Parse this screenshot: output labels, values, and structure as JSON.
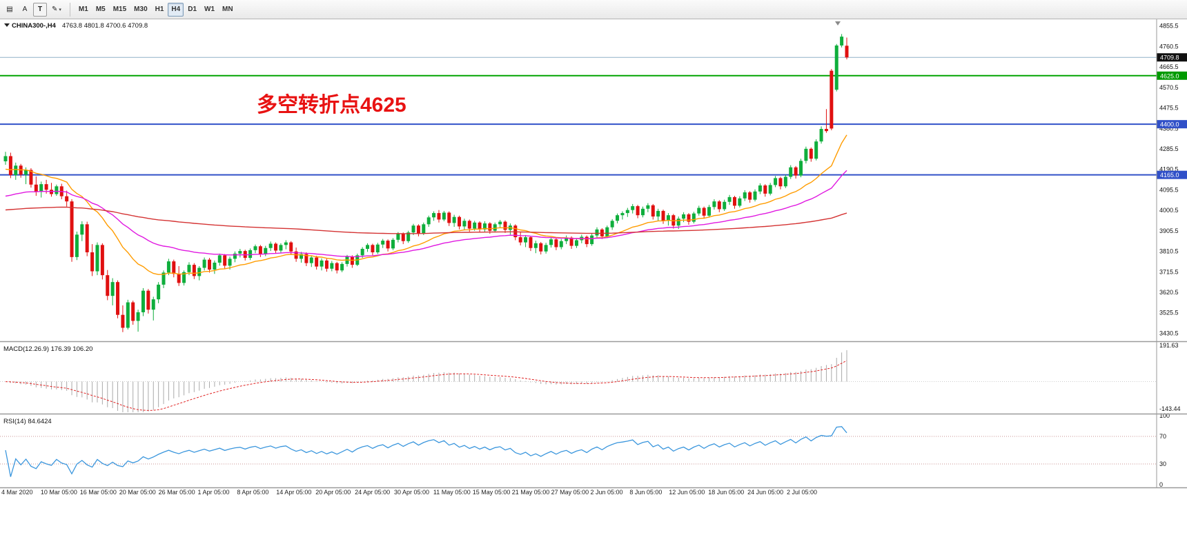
{
  "toolbar": {
    "tools": [
      {
        "label": "▤",
        "name": "chart-panels-icon",
        "boxed": false,
        "caret": false
      },
      {
        "label": "A",
        "name": "text-label-tool",
        "boxed": false,
        "caret": false
      },
      {
        "label": "T",
        "name": "text-box-tool",
        "boxed": true,
        "caret": false
      },
      {
        "label": "✎",
        "name": "drawing-tool",
        "boxed": false,
        "caret": true
      }
    ],
    "timeframes": [
      "M1",
      "M5",
      "M15",
      "M30",
      "H1",
      "H4",
      "D1",
      "W1",
      "MN"
    ],
    "active_timeframe": "H4"
  },
  "chart": {
    "symbol_label": "CHINA300-,H4",
    "ohlc_label": "4763.8 4801.8 4700.6 4709.8",
    "annotation": {
      "text": "多空转折点4625",
      "color": "#e81212"
    },
    "price_axis": {
      "min": 3400,
      "max": 4880,
      "ticks": [
        4855.5,
        4760.5,
        4665.5,
        4570.5,
        4475.5,
        4380.5,
        4285.5,
        4190.5,
        4095.5,
        4000.5,
        3905.5,
        3810.5,
        3715.5,
        3620.5,
        3525.5,
        3430.5
      ]
    },
    "badges": [
      {
        "value": "4709.8",
        "price": 4709.8,
        "bg": "#111111",
        "name": "current-price-badge"
      },
      {
        "value": "4625.0",
        "price": 4625.0,
        "bg": "#009a00",
        "name": "level-badge-4625"
      },
      {
        "value": "4400.0",
        "price": 4400.0,
        "bg": "#3050c8",
        "name": "level-badge-4400"
      },
      {
        "value": "4165.0",
        "price": 4165.0,
        "bg": "#3050c8",
        "name": "level-badge-4165"
      }
    ],
    "hlines": [
      {
        "price": 4709.8,
        "color": "#8fb0c8",
        "width": 1,
        "name": "bid-price-line"
      },
      {
        "price": 4625.0,
        "color": "#00a400",
        "width": 2,
        "name": "green-level-line-4625"
      },
      {
        "price": 4400.0,
        "color": "#3050c8",
        "width": 2,
        "name": "blue-level-line-4400"
      },
      {
        "price": 4165.0,
        "color": "#3050c8",
        "width": 2,
        "name": "blue-level-line-4165"
      }
    ]
  },
  "macd": {
    "label": "MACD(12.26.9) 176.39 106.20",
    "axis_max": "191.63",
    "axis_min": "-143.44"
  },
  "rsi": {
    "label": "RSI(14) 84.6424",
    "axis_ticks": [
      100,
      70,
      30,
      0
    ],
    "levels": [
      70,
      30
    ]
  },
  "time_axis": {
    "labels": [
      "4 Mar 2020",
      "10 Mar 05:00",
      "16 Mar 05:00",
      "20 Mar 05:00",
      "26 Mar 05:00",
      "1 Apr 05:00",
      "8 Apr 05:00",
      "14 Apr 05:00",
      "20 Apr 05:00",
      "24 Apr 05:00",
      "30 Apr 05:00",
      "11 May 05:00",
      "15 May 05:00",
      "21 May 05:00",
      "27 May 05:00",
      "2 Jun 05:00",
      "8 Jun 05:00",
      "12 Jun 05:00",
      "18 Jun 05:00",
      "24 Jun 05:00",
      "2 Jul 05:00"
    ]
  },
  "chart_data": {
    "type": "candlestick",
    "title": "CHINA300- H4",
    "colors": {
      "up": "#0fae3c",
      "down": "#e01010"
    },
    "indicators": {
      "macd": {
        "fast": 12,
        "slow": 26,
        "signal": 9
      },
      "rsi": {
        "period": 14
      }
    },
    "ma": [
      {
        "name": "fast-ma-line",
        "color": "#ff9c00",
        "period": 20,
        "seed": 4185
      },
      {
        "name": "mid-ma-line",
        "color": "#e018e0",
        "period": 45,
        "seed": 4058
      },
      {
        "name": "slow-ma-line",
        "color": "#d43232",
        "period": 200,
        "seed": 4000
      }
    ],
    "candles": [
      [
        4228,
        4272,
        4212,
        4252
      ],
      [
        4252,
        4268,
        4150,
        4164
      ],
      [
        4164,
        4222,
        4142,
        4208
      ],
      [
        4208,
        4216,
        4152,
        4166
      ],
      [
        4166,
        4200,
        4122,
        4188
      ],
      [
        4188,
        4196,
        4106,
        4120
      ],
      [
        4120,
        4158,
        4068,
        4086
      ],
      [
        4086,
        4134,
        4060,
        4122
      ],
      [
        4122,
        4142,
        4078,
        4096
      ],
      [
        4096,
        4128,
        4064,
        4076
      ],
      [
        4076,
        4120,
        4068,
        4112
      ],
      [
        4112,
        4124,
        4052,
        4066
      ],
      [
        4066,
        4092,
        4018,
        4042
      ],
      [
        4042,
        4052,
        3762,
        3784
      ],
      [
        3784,
        3902,
        3770,
        3888
      ],
      [
        3888,
        3950,
        3858,
        3936
      ],
      [
        3936,
        3948,
        3788,
        3806
      ],
      [
        3806,
        3844,
        3696,
        3718
      ],
      [
        3718,
        3852,
        3700,
        3840
      ],
      [
        3840,
        3848,
        3680,
        3700
      ],
      [
        3700,
        3724,
        3584,
        3604
      ],
      [
        3604,
        3686,
        3560,
        3668
      ],
      [
        3668,
        3676,
        3500,
        3516
      ],
      [
        3516,
        3560,
        3436,
        3456
      ],
      [
        3456,
        3586,
        3448,
        3574
      ],
      [
        3574,
        3582,
        3470,
        3488
      ],
      [
        3488,
        3540,
        3438,
        3528
      ],
      [
        3528,
        3640,
        3510,
        3628
      ],
      [
        3628,
        3636,
        3522,
        3540
      ],
      [
        3540,
        3600,
        3490,
        3588
      ],
      [
        3588,
        3668,
        3570,
        3656
      ],
      [
        3656,
        3722,
        3640,
        3712
      ],
      [
        3712,
        3776,
        3700,
        3764
      ],
      [
        3764,
        3772,
        3690,
        3706
      ],
      [
        3706,
        3742,
        3650,
        3664
      ],
      [
        3664,
        3722,
        3652,
        3714
      ],
      [
        3714,
        3760,
        3700,
        3748
      ],
      [
        3748,
        3756,
        3682,
        3696
      ],
      [
        3696,
        3742,
        3676,
        3734
      ],
      [
        3734,
        3782,
        3722,
        3772
      ],
      [
        3772,
        3780,
        3712,
        3726
      ],
      [
        3726,
        3768,
        3706,
        3758
      ],
      [
        3758,
        3800,
        3744,
        3792
      ],
      [
        3792,
        3798,
        3730,
        3744
      ],
      [
        3744,
        3786,
        3726,
        3776
      ],
      [
        3776,
        3810,
        3760,
        3800
      ],
      [
        3800,
        3822,
        3782,
        3812
      ],
      [
        3812,
        3818,
        3768,
        3780
      ],
      [
        3780,
        3824,
        3770,
        3816
      ],
      [
        3816,
        3842,
        3802,
        3834
      ],
      [
        3834,
        3840,
        3784,
        3798
      ],
      [
        3798,
        3836,
        3788,
        3826
      ],
      [
        3826,
        3856,
        3812,
        3846
      ],
      [
        3846,
        3852,
        3800,
        3814
      ],
      [
        3814,
        3848,
        3802,
        3840
      ],
      [
        3840,
        3862,
        3820,
        3852
      ],
      [
        3852,
        3858,
        3796,
        3810
      ],
      [
        3810,
        3828,
        3762,
        3776
      ],
      [
        3776,
        3808,
        3758,
        3798
      ],
      [
        3798,
        3806,
        3742,
        3756
      ],
      [
        3756,
        3792,
        3738,
        3782
      ],
      [
        3782,
        3790,
        3726,
        3740
      ],
      [
        3740,
        3778,
        3722,
        3768
      ],
      [
        3768,
        3776,
        3716,
        3730
      ],
      [
        3730,
        3766,
        3718,
        3756
      ],
      [
        3756,
        3762,
        3708,
        3722
      ],
      [
        3722,
        3760,
        3714,
        3752
      ],
      [
        3752,
        3794,
        3740,
        3786
      ],
      [
        3786,
        3792,
        3734,
        3748
      ],
      [
        3748,
        3800,
        3742,
        3792
      ],
      [
        3792,
        3830,
        3780,
        3822
      ],
      [
        3822,
        3848,
        3808,
        3840
      ],
      [
        3840,
        3846,
        3792,
        3806
      ],
      [
        3806,
        3850,
        3798,
        3842
      ],
      [
        3842,
        3868,
        3826,
        3860
      ],
      [
        3860,
        3866,
        3810,
        3824
      ],
      [
        3824,
        3872,
        3816,
        3864
      ],
      [
        3864,
        3900,
        3852,
        3892
      ],
      [
        3892,
        3898,
        3844,
        3858
      ],
      [
        3858,
        3906,
        3850,
        3898
      ],
      [
        3898,
        3938,
        3886,
        3930
      ],
      [
        3930,
        3936,
        3880,
        3894
      ],
      [
        3894,
        3944,
        3886,
        3936
      ],
      [
        3936,
        3976,
        3924,
        3968
      ],
      [
        3968,
        3996,
        3952,
        3988
      ],
      [
        3988,
        4002,
        3944,
        3958
      ],
      [
        3958,
        3998,
        3950,
        3990
      ],
      [
        3990,
        3996,
        3928,
        3942
      ],
      [
        3942,
        3980,
        3924,
        3970
      ],
      [
        3970,
        3976,
        3912,
        3926
      ],
      [
        3926,
        3962,
        3908,
        3952
      ],
      [
        3952,
        3958,
        3902,
        3916
      ],
      [
        3916,
        3952,
        3906,
        3944
      ],
      [
        3944,
        3950,
        3898,
        3912
      ],
      [
        3912,
        3950,
        3902,
        3940
      ],
      [
        3940,
        3946,
        3892,
        3906
      ],
      [
        3906,
        3944,
        3898,
        3936
      ],
      [
        3936,
        3956,
        3918,
        3948
      ],
      [
        3948,
        3954,
        3896,
        3910
      ],
      [
        3910,
        3940,
        3888,
        3930
      ],
      [
        3930,
        3936,
        3862,
        3876
      ],
      [
        3876,
        3902,
        3838,
        3852
      ],
      [
        3852,
        3886,
        3830,
        3876
      ],
      [
        3876,
        3882,
        3812,
        3826
      ],
      [
        3826,
        3860,
        3802,
        3848
      ],
      [
        3848,
        3854,
        3796,
        3810
      ],
      [
        3810,
        3850,
        3800,
        3840
      ],
      [
        3840,
        3876,
        3828,
        3866
      ],
      [
        3866,
        3872,
        3816,
        3830
      ],
      [
        3830,
        3868,
        3820,
        3858
      ],
      [
        3858,
        3884,
        3844,
        3874
      ],
      [
        3874,
        3880,
        3822,
        3836
      ],
      [
        3836,
        3872,
        3826,
        3862
      ],
      [
        3862,
        3888,
        3848,
        3878
      ],
      [
        3878,
        3884,
        3830,
        3844
      ],
      [
        3844,
        3892,
        3836,
        3884
      ],
      [
        3884,
        3922,
        3872,
        3912
      ],
      [
        3912,
        3918,
        3868,
        3880
      ],
      [
        3880,
        3930,
        3872,
        3922
      ],
      [
        3922,
        3960,
        3910,
        3952
      ],
      [
        3952,
        3986,
        3940,
        3978
      ],
      [
        3978,
        3996,
        3958,
        3988
      ],
      [
        3988,
        4012,
        3970,
        4002
      ],
      [
        4002,
        4030,
        3986,
        4020
      ],
      [
        4020,
        4026,
        3964,
        3978
      ],
      [
        3978,
        4018,
        3968,
        4008
      ],
      [
        4008,
        4034,
        3992,
        4024
      ],
      [
        4024,
        4030,
        3958,
        3972
      ],
      [
        3972,
        4008,
        3952,
        3998
      ],
      [
        3998,
        4004,
        3938,
        3952
      ],
      [
        3952,
        3988,
        3930,
        3978
      ],
      [
        3978,
        3984,
        3916,
        3930
      ],
      [
        3930,
        3972,
        3914,
        3962
      ],
      [
        3962,
        3992,
        3946,
        3982
      ],
      [
        3982,
        3988,
        3934,
        3948
      ],
      [
        3948,
        3994,
        3940,
        3986
      ],
      [
        3986,
        4022,
        3976,
        4012
      ],
      [
        4012,
        4018,
        3962,
        3976
      ],
      [
        3976,
        4026,
        3968,
        4016
      ],
      [
        4016,
        4052,
        4004,
        4042
      ],
      [
        4042,
        4048,
        3992,
        4006
      ],
      [
        4006,
        4050,
        3998,
        4040
      ],
      [
        4040,
        4072,
        4026,
        4062
      ],
      [
        4062,
        4068,
        4008,
        4022
      ],
      [
        4022,
        4066,
        4014,
        4056
      ],
      [
        4056,
        4094,
        4044,
        4084
      ],
      [
        4084,
        4090,
        4036,
        4050
      ],
      [
        4050,
        4098,
        4042,
        4088
      ],
      [
        4088,
        4126,
        4076,
        4116
      ],
      [
        4116,
        4122,
        4064,
        4078
      ],
      [
        4078,
        4128,
        4070,
        4118
      ],
      [
        4118,
        4160,
        4108,
        4150
      ],
      [
        4150,
        4156,
        4098,
        4112
      ],
      [
        4112,
        4166,
        4104,
        4156
      ],
      [
        4156,
        4210,
        4146,
        4200
      ],
      [
        4200,
        4206,
        4148,
        4162
      ],
      [
        4162,
        4240,
        4154,
        4230
      ],
      [
        4230,
        4296,
        4218,
        4286
      ],
      [
        4286,
        4292,
        4226,
        4240
      ],
      [
        4240,
        4330,
        4232,
        4320
      ],
      [
        4320,
        4390,
        4310,
        4378
      ],
      [
        4378,
        4470,
        4360,
        4368
      ],
      [
        4648,
        4656,
        4372,
        4380
      ],
      [
        4560,
        4772,
        4552,
        4765
      ],
      [
        4765,
        4818,
        4756,
        4806
      ],
      [
        4763.8,
        4801.8,
        4700.6,
        4709.8
      ]
    ]
  }
}
